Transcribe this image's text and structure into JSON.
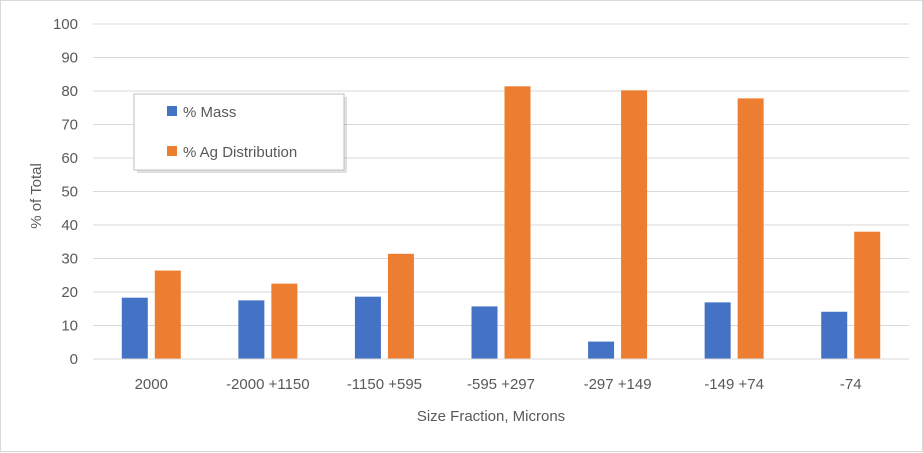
{
  "chart_data": {
    "type": "bar",
    "title": "",
    "xlabel": "Size Fraction, Microns",
    "ylabel": "% of Total",
    "ylim": [
      0,
      100
    ],
    "yticks": [
      0,
      10,
      20,
      30,
      40,
      50,
      60,
      70,
      80,
      90,
      100
    ],
    "grid": true,
    "legend_position": "top-left",
    "categories": [
      "2000",
      "-2000 +1150",
      "-1150 +595",
      "-595 +297",
      "-297 +149",
      "-149 +74",
      "-74"
    ],
    "series": [
      {
        "name": "% Mass",
        "color": "#4472c4",
        "values": [
          18.3,
          17.5,
          18.6,
          15.7,
          5.2,
          16.9,
          14.1
        ]
      },
      {
        "name": "% Ag Distribution",
        "color": "#ed7d31",
        "values": [
          26.4,
          22.5,
          31.4,
          81.4,
          80.2,
          77.8,
          38.0
        ]
      }
    ]
  }
}
